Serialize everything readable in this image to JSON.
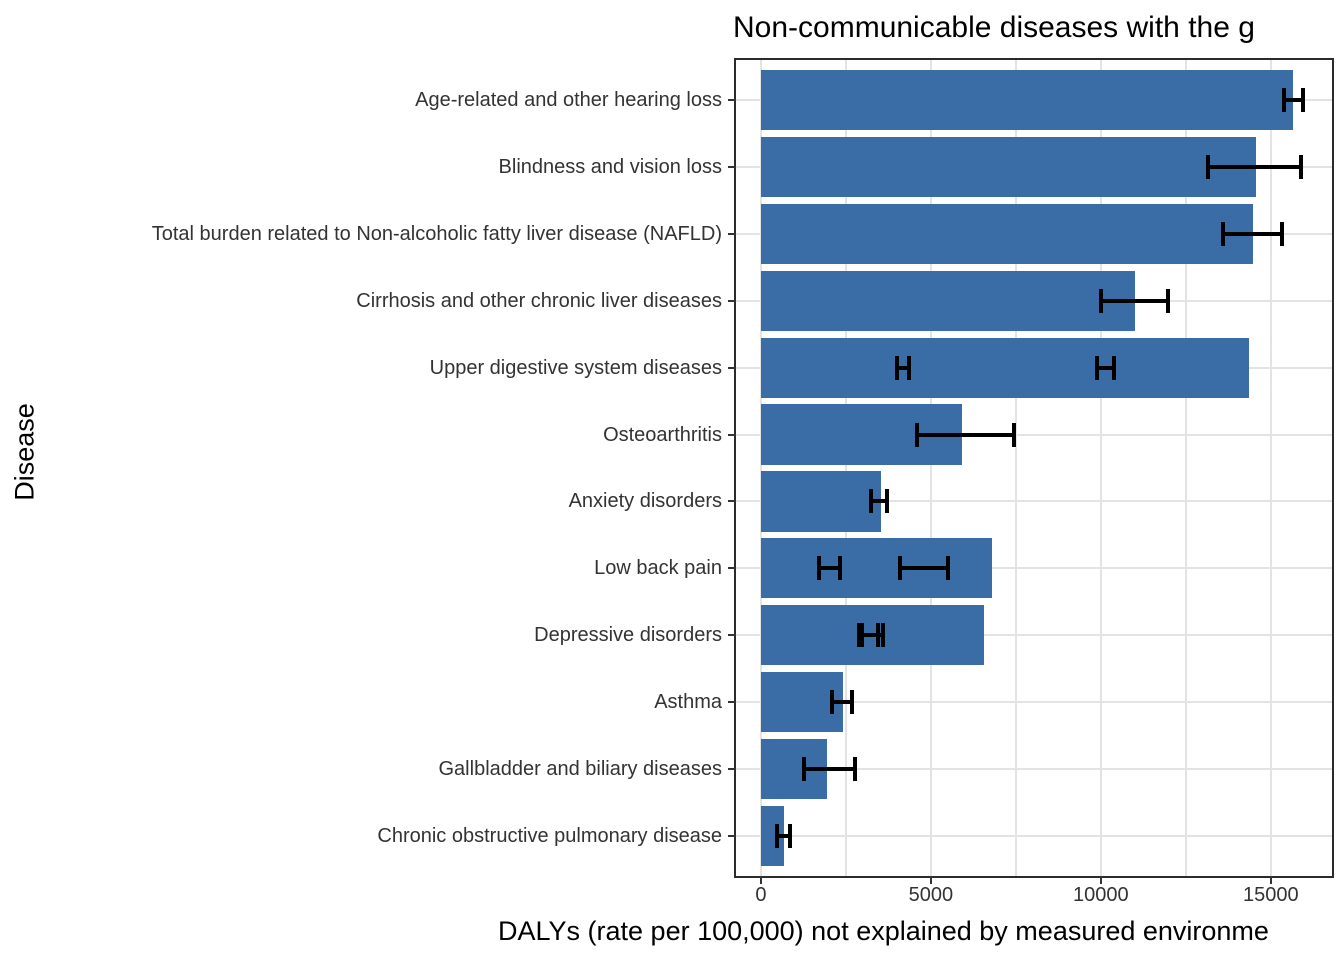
{
  "chart_data": {
    "type": "bar",
    "orientation": "horizontal",
    "title": "Non-communicable diseases with the g",
    "xlabel": "DALYs (rate per 100,000) not explained by measured environme",
    "ylabel": "Disease",
    "categories": [
      "Age-related and other hearing loss",
      "Blindness and vision loss",
      "Total burden related to Non-alcoholic fatty liver disease (NAFLD)",
      "Cirrhosis and other chronic liver diseases",
      "Upper digestive system diseases",
      "Osteoarthritis",
      "Anxiety disorders",
      "Low back pain",
      "Depressive disorders",
      "Asthma",
      "Gallbladder and biliary diseases",
      "Chronic obstructive pulmonary disease"
    ],
    "values": [
      15650,
      14550,
      14470,
      11000,
      14360,
      5900,
      3540,
      6800,
      6550,
      2400,
      1930,
      680
    ],
    "error_bars": [
      [
        [
          15380,
          15940
        ]
      ],
      [
        [
          13150,
          15900
        ]
      ],
      [
        [
          13580,
          15340
        ]
      ],
      [
        [
          10000,
          11980
        ]
      ],
      [
        [
          4000,
          4350
        ],
        [
          9900,
          10400
        ]
      ],
      [
        [
          4600,
          7450
        ]
      ],
      [
        [
          3250,
          3700
        ]
      ],
      [
        [
          1700,
          2330
        ],
        [
          4100,
          5500
        ]
      ],
      [
        [
          2890,
          3430
        ],
        [
          2960,
          3590
        ]
      ],
      [
        [
          2100,
          2680
        ]
      ],
      [
        [
          1280,
          2760
        ]
      ],
      [
        [
          470,
          860
        ]
      ]
    ],
    "xticks": [
      0,
      5000,
      10000,
      15000
    ],
    "xtick_labels": [
      "0",
      "5000",
      "10000",
      "15000"
    ],
    "minor_gridlines": [
      2500,
      7500,
      12500
    ],
    "xlim": [
      -735,
      16800
    ],
    "grid": true,
    "legend": "none",
    "bar_color": "#3a6da6",
    "error_color": "#000000",
    "gridline_color": "#e3e3e3"
  }
}
